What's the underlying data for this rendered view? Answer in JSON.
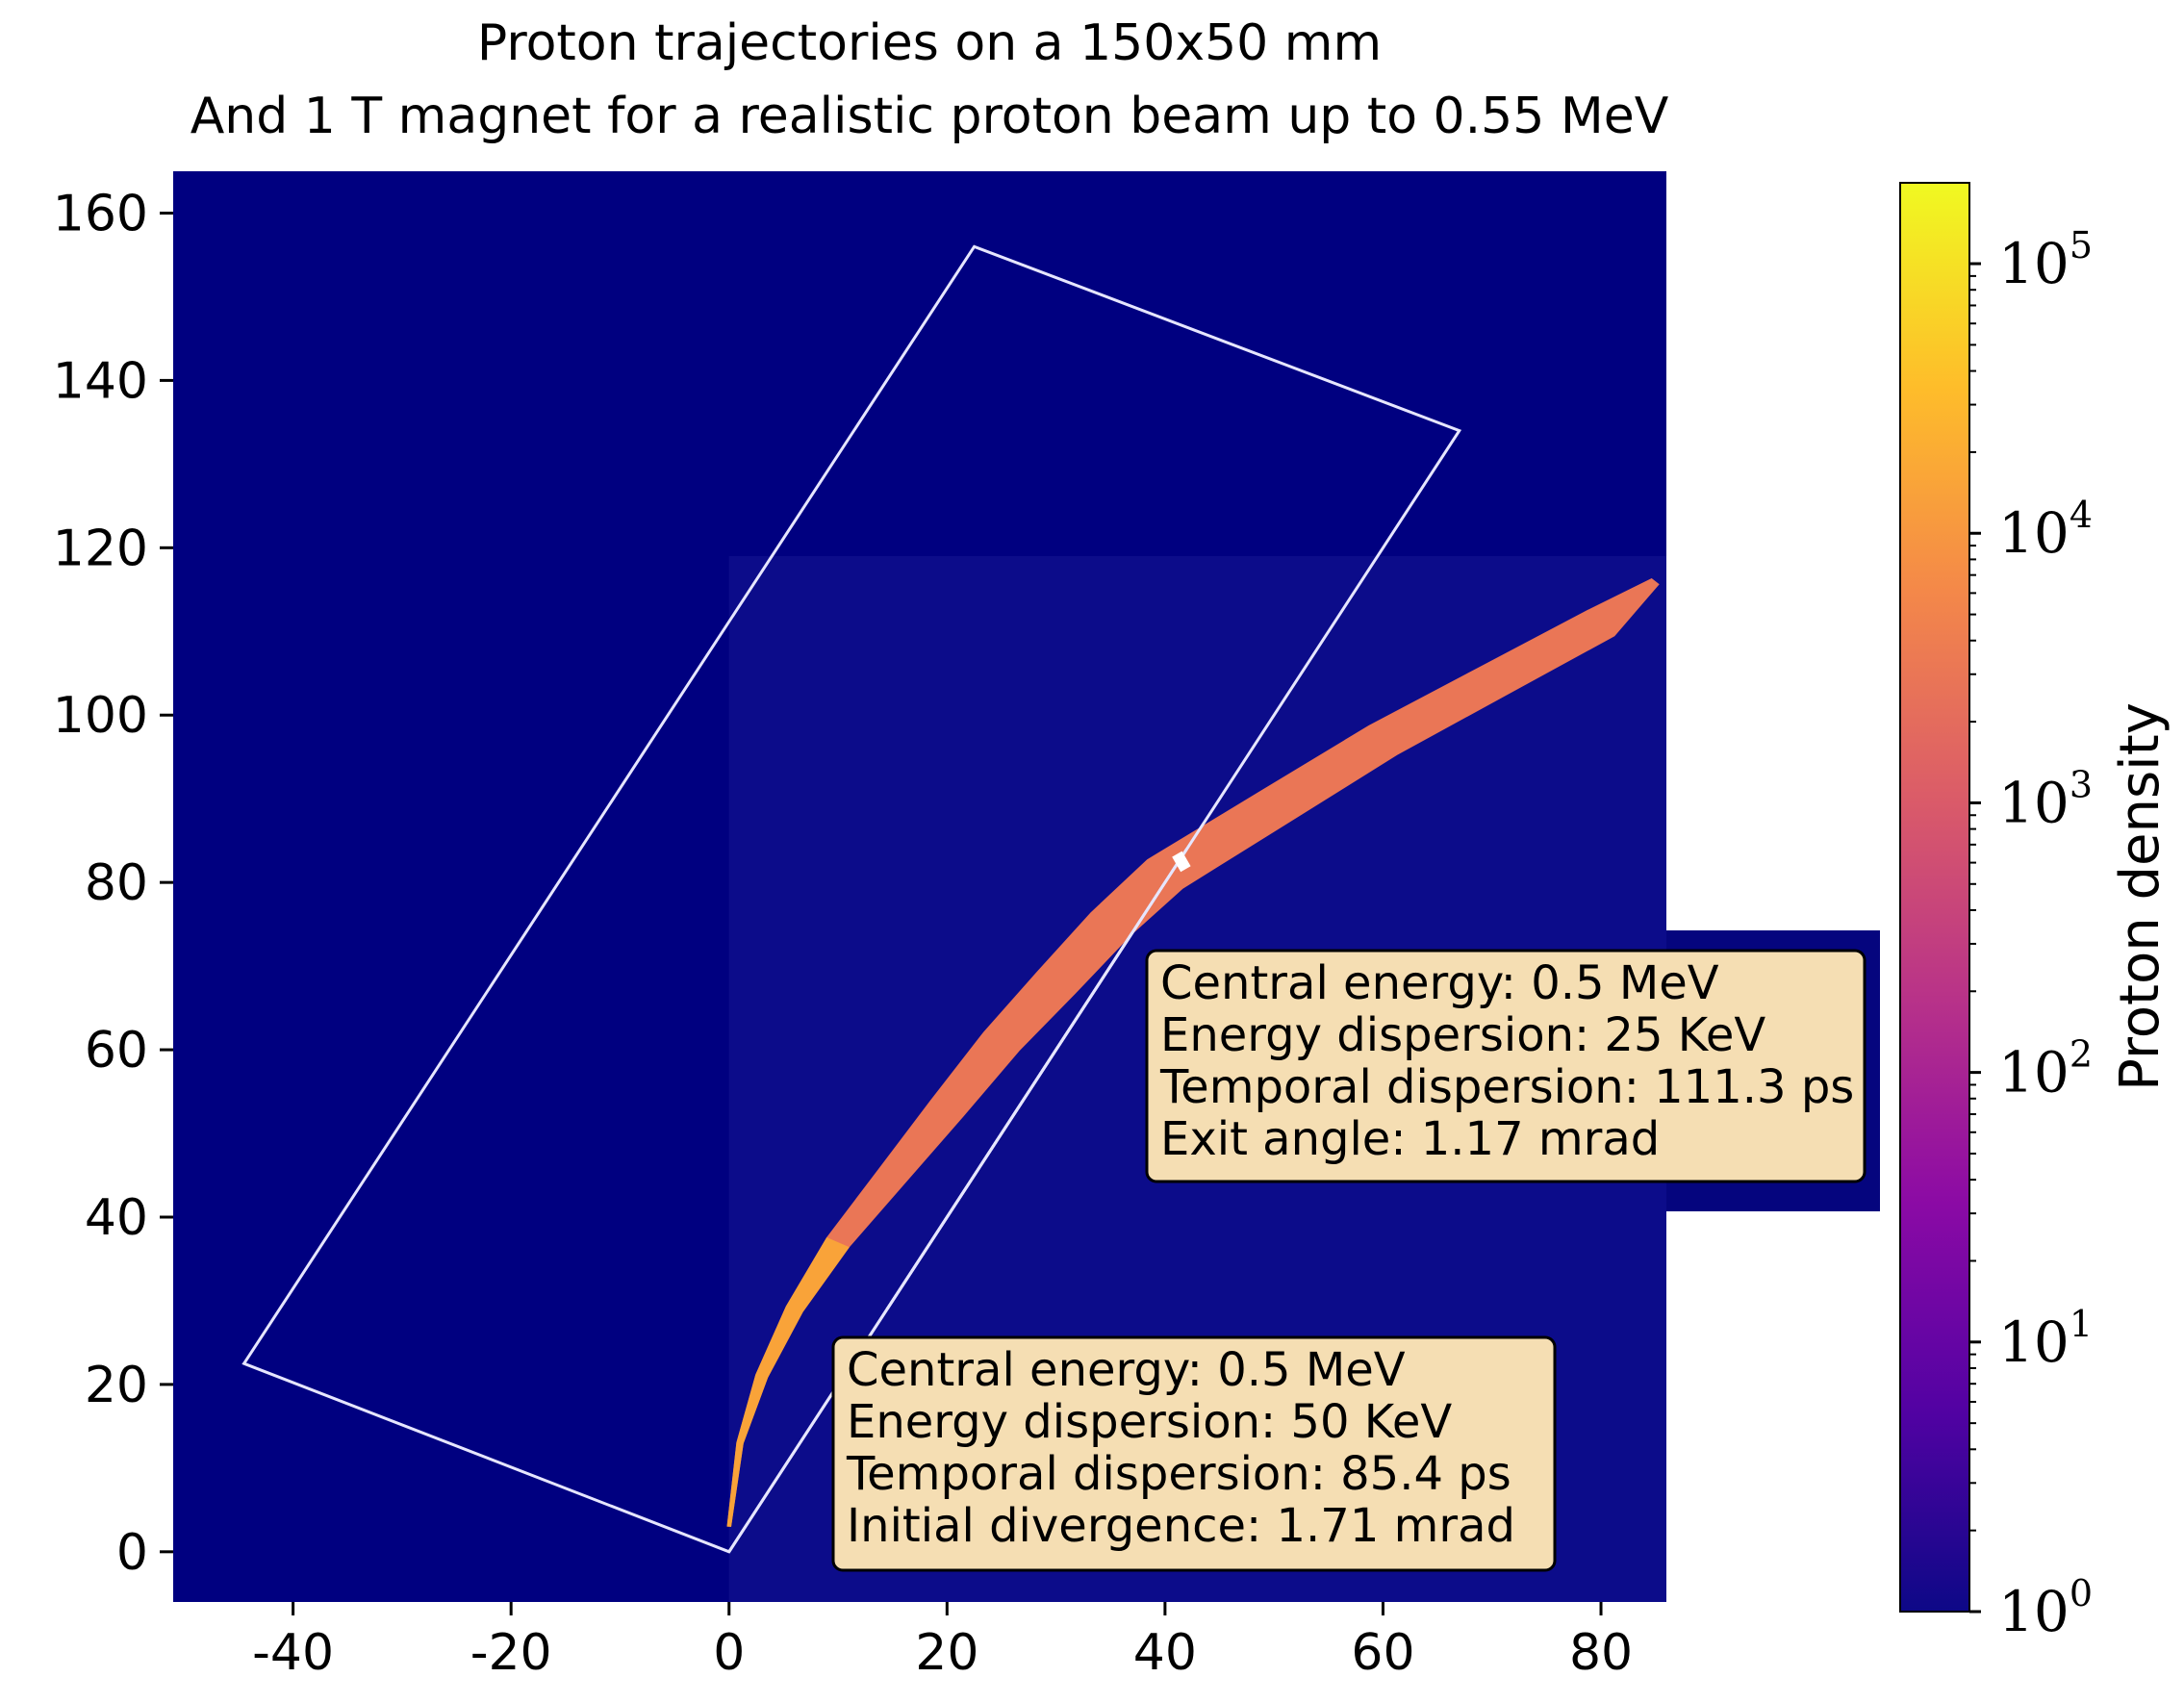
{
  "chart_data": {
    "type": "heatmap",
    "title_lines": [
      "Proton trajectories on a 150x50 mm",
      "And 1 T magnet for a realistic proton beam up to 0.55 MeV"
    ],
    "xlabel": "",
    "ylabel": "",
    "xlim": [
      -51,
      86
    ],
    "ylim": [
      -6,
      165
    ],
    "x_ticks": [
      {
        "value": -40,
        "label": "-40"
      },
      {
        "value": -20,
        "label": "-20"
      },
      {
        "value": 0,
        "label": "0"
      },
      {
        "value": 20,
        "label": "20"
      },
      {
        "value": 40,
        "label": "40"
      },
      {
        "value": 60,
        "label": "60"
      },
      {
        "value": 80,
        "label": "80"
      }
    ],
    "y_ticks": [
      {
        "value": 0,
        "label": "0"
      },
      {
        "value": 20,
        "label": "20"
      },
      {
        "value": 40,
        "label": "40"
      },
      {
        "value": 60,
        "label": "60"
      },
      {
        "value": 80,
        "label": "80"
      },
      {
        "value": 100,
        "label": "100"
      },
      {
        "value": 120,
        "label": "120"
      },
      {
        "value": 140,
        "label": "140"
      },
      {
        "value": 160,
        "label": "160"
      }
    ],
    "magnet_outline": [
      [
        0,
        0
      ],
      [
        -44.5,
        22.5
      ],
      [
        22.5,
        156
      ],
      [
        67,
        134
      ]
    ],
    "magnet_exit_segment": [
      [
        14.5,
        29
      ],
      [
        37,
        74
      ]
    ],
    "exit_line": [
      [
        0,
        0
      ],
      [
        42,
        84
      ]
    ],
    "beam_center": [
      [
        0,
        3
      ],
      [
        1,
        13
      ],
      [
        3,
        21
      ],
      [
        6,
        29
      ],
      [
        10,
        37
      ],
      [
        15,
        45
      ],
      [
        20,
        53
      ],
      [
        25,
        61
      ],
      [
        30,
        68
      ],
      [
        35,
        75
      ],
      [
        40,
        81
      ],
      [
        50,
        89
      ],
      [
        60,
        97
      ],
      [
        70,
        104
      ],
      [
        80,
        111
      ],
      [
        85,
        116
      ]
    ],
    "beam_halfwidth": [
      [
        0,
        0.2
      ],
      [
        3,
        0.6
      ],
      [
        10,
        1.2
      ],
      [
        20,
        1.8
      ],
      [
        30,
        2.2
      ],
      [
        40,
        2.4
      ],
      [
        60,
        2.2
      ],
      [
        80,
        2.0
      ],
      [
        85,
        0.5
      ]
    ],
    "beam_density": 3000,
    "beam_density_start": 20000,
    "exit_marker": [
      41.5,
      82.5
    ],
    "dim_region": {
      "x": [
        0,
        86
      ],
      "y": [
        -6,
        119
      ]
    },
    "colorbar": {
      "label": "Proton density",
      "scale": "log",
      "range_exponent": [
        0,
        5.3
      ],
      "ticks": [
        {
          "exponent": 0,
          "base": "10",
          "exp_label": "0"
        },
        {
          "exponent": 1,
          "base": "10",
          "exp_label": "1"
        },
        {
          "exponent": 2,
          "base": "10",
          "exp_label": "2"
        },
        {
          "exponent": 3,
          "base": "10",
          "exp_label": "3"
        },
        {
          "exponent": 4,
          "base": "10",
          "exp_label": "4"
        },
        {
          "exponent": 5,
          "base": "10",
          "exp_label": "5"
        }
      ],
      "colors": [
        "#0d0887",
        "#5302a3",
        "#8b0aa5",
        "#b83289",
        "#db5c68",
        "#f48849",
        "#febd2a",
        "#f0f921"
      ]
    },
    "annotations": [
      {
        "id": "exit",
        "anchor_data": [
          40,
          65
        ],
        "lines": [
          "Central energy: 0.5 MeV",
          "Energy dispersion: 25 KeV",
          "Temporal dispersion: 111.3 ps",
          "Exit angle: 1.17 mrad"
        ]
      },
      {
        "id": "initial",
        "anchor_data": [
          10,
          21
        ],
        "lines": [
          "Central energy: 0.5 MeV",
          "Energy dispersion: 50 KeV",
          "Temporal dispersion: 85.4 ps",
          "Initial divergence: 1.71 mrad"
        ]
      }
    ],
    "colors": {
      "background": "#000080",
      "dim_region": "#0c0c8a",
      "outline": "#e6e6ff",
      "annotation_fill": "#f5deb3",
      "annotation_patch": "#05057e"
    }
  }
}
